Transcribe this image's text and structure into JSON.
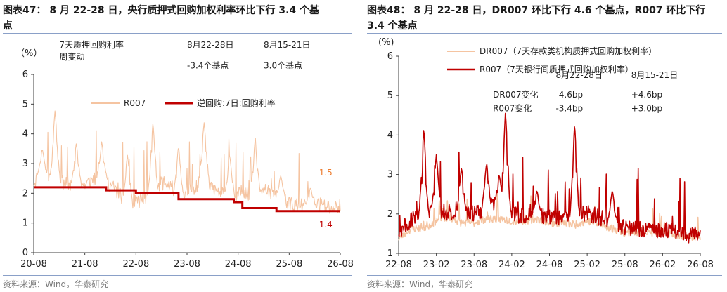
{
  "left": {
    "title_line1": "图表47： 8 月 22-28 日，央行质押式回购加权利率环比下行 3.4 个基",
    "title_line2": "点",
    "source": "资料来源：Wind，华泰研究"
  },
  "right": {
    "title_line1": "图表48： 8 月 22-28 日，DR007 环比下行 4.6 个基点，R007 环比下行",
    "title_line2": "3.4 个基点",
    "source": "资料来源：Wind，华泰研究"
  },
  "chart_data": [
    {
      "type": "line",
      "title": "",
      "ylabel": "（%）",
      "ylim": [
        0,
        6
      ],
      "yticks": [
        "0",
        "1",
        "2",
        "3",
        "4",
        "5",
        "6"
      ],
      "xticks": [
        "20-08",
        "21-08",
        "22-08",
        "23-08",
        "24-08",
        "25-08",
        "26-08"
      ],
      "grid": false,
      "legend_position": "upper-center",
      "series": [
        {
          "name": "R007",
          "color": "#f5c4a1",
          "style": "volatile-thin",
          "x": [
            "2020-08",
            "2020-10",
            "2020-12",
            "2021-02",
            "2021-04",
            "2021-06",
            "2021-08",
            "2021-10",
            "2021-12",
            "2022-02",
            "2022-04",
            "2022-06",
            "2022-08",
            "2022-10",
            "2022-12",
            "2023-02",
            "2023-04",
            "2023-06",
            "2023-08",
            "2023-10",
            "2023-12",
            "2024-02",
            "2024-04",
            "2024-06",
            "2024-08",
            "2024-10",
            "2024-12",
            "2025-02",
            "2025-04",
            "2025-06",
            "2025-08",
            "2025-10",
            "2025-12",
            "2026-02",
            "2026-04",
            "2026-06",
            "2026-08"
          ],
          "y": [
            2.3,
            2.6,
            2.5,
            2.4,
            2.2,
            2.3,
            2.2,
            2.4,
            2.5,
            2.2,
            1.9,
            1.7,
            1.6,
            1.8,
            2.0,
            2.3,
            2.2,
            1.9,
            1.9,
            2.2,
            2.4,
            2.1,
            1.9,
            1.9,
            1.9,
            1.9,
            2.0,
            2.1,
            1.9,
            1.8,
            1.6,
            1.5,
            1.5,
            1.6,
            1.5,
            1.4,
            1.5
          ],
          "spikes": [
            {
              "x": "2020-10",
              "y": 3.5
            },
            {
              "x": "2021-01",
              "y": 4.8
            },
            {
              "x": "2021-06",
              "y": 3.7
            },
            {
              "x": "2021-12",
              "y": 3.7
            },
            {
              "x": "2022-06",
              "y": 3.3
            },
            {
              "x": "2022-12",
              "y": 4.4
            },
            {
              "x": "2023-06",
              "y": 3.6
            },
            {
              "x": "2023-12",
              "y": 4.4
            },
            {
              "x": "2024-06",
              "y": 3.3
            },
            {
              "x": "2024-12",
              "y": 3.8
            },
            {
              "x": "2025-06",
              "y": 2.6
            },
            {
              "x": "2026-01",
              "y": 2.2
            }
          ]
        },
        {
          "name": "逆回购:7日:回购利率",
          "color": "#c00000",
          "style": "step-thick",
          "x": [
            "2020-08",
            "2022-01",
            "2022-08",
            "2023-06",
            "2024-07",
            "2024-09",
            "2025-05",
            "2026-08"
          ],
          "y": [
            2.2,
            2.1,
            2.0,
            1.8,
            1.7,
            1.5,
            1.4,
            1.4
          ]
        }
      ],
      "annotations": [
        {
          "text": "7天质押回购利率",
          "x": "2021-02",
          "y": 6.9
        },
        {
          "text": "周变动",
          "x": "2021-02",
          "y": 6.5
        },
        {
          "text": "8月22-28日",
          "x": "2023-08",
          "y": 6.9
        },
        {
          "text": "-3.4个基点",
          "x": "2023-08",
          "y": 6.2
        },
        {
          "text": "8月15-21日",
          "x": "2025-02",
          "y": 6.9
        },
        {
          "text": "3.0个基点",
          "x": "2025-02",
          "y": 6.2
        },
        {
          "text": "1.5",
          "x": "2026-03",
          "y": 2.6,
          "color": "#ed7d31"
        },
        {
          "text": "1.4",
          "x": "2026-03",
          "y": 0.85,
          "color": "#c00000"
        }
      ]
    },
    {
      "type": "line",
      "title": "",
      "ylabel": "(%)",
      "ylim": [
        1,
        6
      ],
      "yticks": [
        "1",
        "2",
        "3",
        "4",
        "5",
        "6"
      ],
      "xticks": [
        "22-08",
        "23-02",
        "23-08",
        "24-02",
        "24-08",
        "25-02",
        "25-08",
        "26-02",
        "26-08"
      ],
      "grid": false,
      "legend_position": "top-left",
      "series": [
        {
          "name": "DR007（7天存款类机构质押式回购加权利率）",
          "color": "#f5c4a1",
          "x": [
            "2022-08",
            "2022-10",
            "2022-12",
            "2023-02",
            "2023-04",
            "2023-06",
            "2023-08",
            "2023-10",
            "2023-12",
            "2024-02",
            "2024-04",
            "2024-06",
            "2024-08",
            "2024-10",
            "2024-12",
            "2025-02",
            "2025-04",
            "2025-06",
            "2025-08",
            "2025-10",
            "2025-12",
            "2026-02",
            "2026-04",
            "2026-06",
            "2026-08"
          ],
          "y": [
            1.35,
            1.6,
            1.6,
            1.8,
            1.9,
            1.75,
            1.75,
            1.85,
            1.85,
            1.8,
            1.8,
            1.85,
            1.75,
            1.75,
            1.7,
            1.8,
            1.7,
            1.6,
            1.5,
            1.5,
            1.5,
            1.5,
            1.45,
            1.4,
            1.4
          ]
        },
        {
          "name": "R007（7天银行间质押式回购加权利率）",
          "color": "#c00000",
          "x": [
            "2022-08",
            "2022-10",
            "2022-12",
            "2023-02",
            "2023-04",
            "2023-06",
            "2023-08",
            "2023-10",
            "2023-12",
            "2024-02",
            "2024-04",
            "2024-06",
            "2024-08",
            "2024-10",
            "2024-12",
            "2025-02",
            "2025-04",
            "2025-06",
            "2025-08",
            "2025-10",
            "2025-12",
            "2026-02",
            "2026-04",
            "2026-06",
            "2026-08"
          ],
          "y": [
            1.5,
            1.8,
            1.9,
            2.0,
            2.0,
            1.95,
            1.95,
            2.1,
            2.2,
            1.95,
            1.9,
            1.95,
            1.85,
            1.85,
            1.85,
            2.0,
            1.85,
            1.75,
            1.6,
            1.55,
            1.55,
            1.55,
            1.5,
            1.4,
            1.45
          ],
          "spikes": [
            {
              "x": "2022-12",
              "y": 4.2
            },
            {
              "x": "2023-02",
              "y": 3.5
            },
            {
              "x": "2023-06",
              "y": 3.2
            },
            {
              "x": "2023-10",
              "y": 3.3
            },
            {
              "x": "2023-12",
              "y": 3.0
            },
            {
              "x": "2024-01",
              "y": 4.6
            },
            {
              "x": "2024-06",
              "y": 2.6
            },
            {
              "x": "2024-12",
              "y": 4.3
            },
            {
              "x": "2025-06",
              "y": 2.6
            }
          ]
        }
      ],
      "annotations": [
        {
          "text": "8月22-28日",
          "x": "2024-09",
          "y": 5.45
        },
        {
          "text": "8月15-21日",
          "x": "2025-09",
          "y": 5.45
        },
        {
          "text": "DR007变化",
          "x": "2023-11",
          "y": 4.95
        },
        {
          "text": "-4.6bp",
          "x": "2024-09",
          "y": 4.95
        },
        {
          "text": "+4.6bp",
          "x": "2025-09",
          "y": 4.95
        },
        {
          "text": "R007变化",
          "x": "2023-11",
          "y": 4.6
        },
        {
          "text": "-3.4bp",
          "x": "2024-09",
          "y": 4.6
        },
        {
          "text": "+3.0bp",
          "x": "2025-09",
          "y": 4.6
        }
      ]
    }
  ]
}
